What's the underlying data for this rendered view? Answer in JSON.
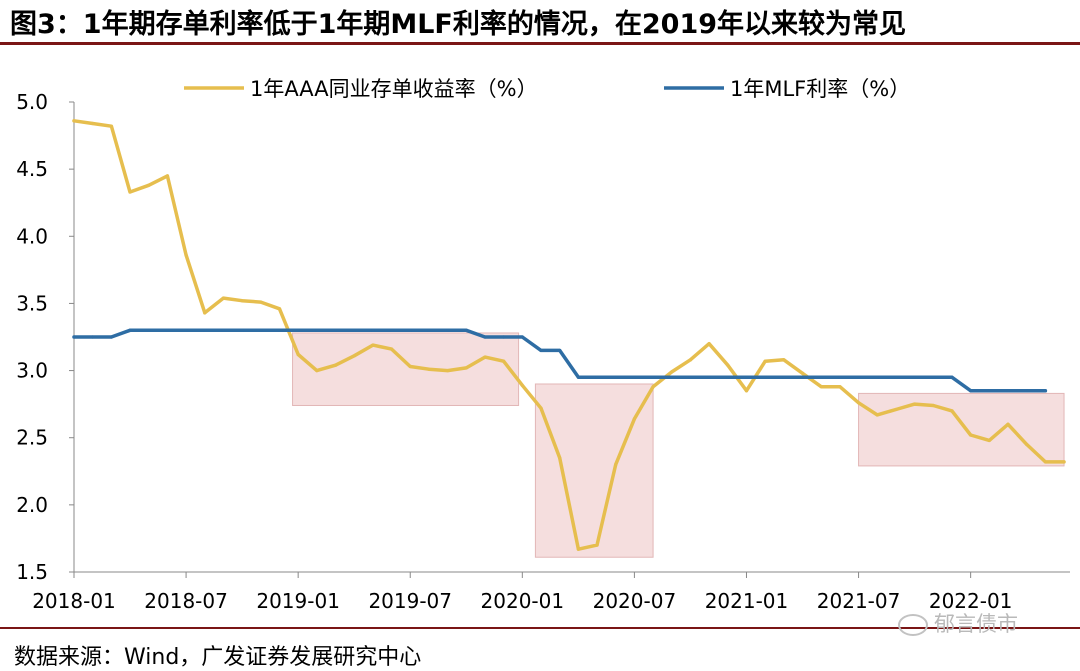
{
  "title": "图3：1年期存单利率低于1年期MLF利率的情况，在2019年以来较为常见",
  "source": "数据来源：Wind，广发证券发展研究中心",
  "watermark": "郁言债市",
  "colors": {
    "cd": "#E6BE4E",
    "mlf": "#2E6DA4",
    "highlight": "#F5DEDE",
    "highlight_stroke": "#E2B6B6",
    "rule": "#7a1515"
  },
  "chart_data": {
    "type": "line",
    "title": "",
    "xlabel": "",
    "ylabel": "",
    "ylim": [
      1.5,
      5.0
    ],
    "yticks": [
      1.5,
      2.0,
      2.5,
      3.0,
      3.5,
      4.0,
      4.5,
      5.0
    ],
    "ytick_labels": [
      "1.5",
      "2.0",
      "2.5",
      "3.0",
      "3.5",
      "4.0",
      "4.5",
      "5.0"
    ],
    "x_tick_labels": [
      "2018-01",
      "2018-07",
      "2019-01",
      "2019-07",
      "2020-01",
      "2020-07",
      "2021-01",
      "2021-07",
      "2022-01"
    ],
    "x_tick_index": [
      0,
      6,
      12,
      18,
      24,
      30,
      36,
      42,
      48
    ],
    "x_range": [
      0,
      53
    ],
    "legend_position": "top",
    "series": [
      {
        "name": "1年AAA同业存单收益率（%）",
        "color": "#E6BE4E",
        "values": [
          4.86,
          4.84,
          4.82,
          4.33,
          4.38,
          4.45,
          3.86,
          3.43,
          3.54,
          3.52,
          3.51,
          3.46,
          3.12,
          3.0,
          3.04,
          3.11,
          3.19,
          3.16,
          3.03,
          3.01,
          3.0,
          3.02,
          3.1,
          3.07,
          2.89,
          2.72,
          2.35,
          1.67,
          1.7,
          2.3,
          2.64,
          2.88,
          2.99,
          3.08,
          3.2,
          3.04,
          2.85,
          3.07,
          3.08,
          2.98,
          2.88,
          2.88,
          2.76,
          2.67,
          2.71,
          2.75,
          2.74,
          2.7,
          2.52,
          2.48,
          2.6,
          2.45,
          2.32,
          2.32
        ]
      },
      {
        "name": "1年MLF利率（%）",
        "color": "#2E6DA4",
        "values": [
          3.25,
          3.25,
          3.25,
          3.3,
          3.3,
          3.3,
          3.3,
          3.3,
          3.3,
          3.3,
          3.3,
          3.3,
          3.3,
          3.3,
          3.3,
          3.3,
          3.3,
          3.3,
          3.3,
          3.3,
          3.3,
          3.3,
          3.25,
          3.25,
          3.25,
          3.15,
          3.15,
          2.95,
          2.95,
          2.95,
          2.95,
          2.95,
          2.95,
          2.95,
          2.95,
          2.95,
          2.95,
          2.95,
          2.95,
          2.95,
          2.95,
          2.95,
          2.95,
          2.95,
          2.95,
          2.95,
          2.95,
          2.95,
          2.85,
          2.85,
          2.85,
          2.85,
          2.85
        ]
      }
    ],
    "highlights": [
      {
        "label": "highlight-2019",
        "x_start": 11.7,
        "x_end": 23.8,
        "y_low": 2.74,
        "y_high": 3.28
      },
      {
        "label": "highlight-2020",
        "x_start": 24.7,
        "x_end": 31.0,
        "y_low": 1.61,
        "y_high": 2.9
      },
      {
        "label": "highlight-2021-2022",
        "x_start": 42.0,
        "x_end": 53.0,
        "y_low": 2.29,
        "y_high": 2.83
      }
    ]
  }
}
